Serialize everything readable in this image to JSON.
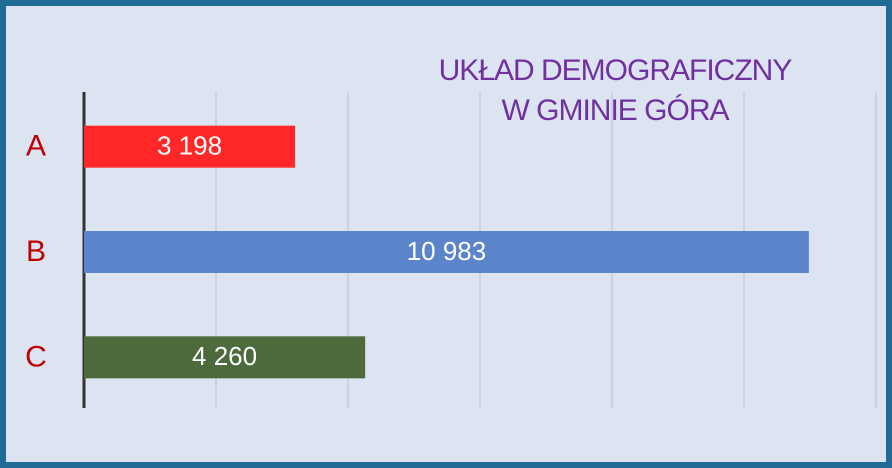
{
  "chart_data": {
    "type": "bar",
    "orientation": "horizontal",
    "title": "UKŁAD DEMOGRAFICZNY\nW GMINIE GÓRA",
    "categories": [
      "A",
      "B",
      "C"
    ],
    "values": [
      3198,
      10983,
      4260
    ],
    "value_labels": [
      "3 198",
      "10 983",
      "4 260"
    ],
    "colors": [
      "#ff2727",
      "#5b84cb",
      "#4c6a3c"
    ],
    "xlim": [
      0,
      12000
    ],
    "xticks": [
      0,
      2000,
      4000,
      6000,
      8000,
      10000,
      12000
    ],
    "grid": true
  }
}
